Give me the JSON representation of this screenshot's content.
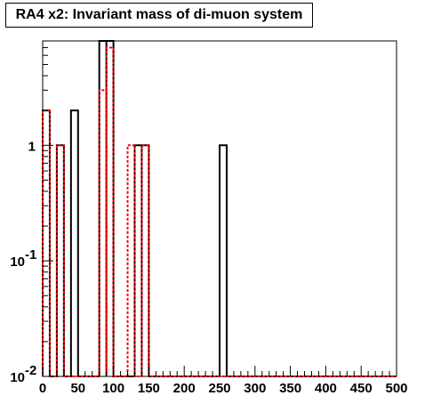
{
  "title": "RA4 x2: Invariant mass of di-muon system",
  "chart_data": {
    "type": "histogram",
    "title": "RA4 x2: Invariant mass of di-muon system",
    "xlabel": "",
    "ylabel": "",
    "xlim": [
      0,
      500
    ],
    "ylim": [
      0.01,
      8
    ],
    "y_scale": "log",
    "bin_width": 10,
    "x_ticks": [
      "0",
      "50",
      "100",
      "150",
      "200",
      "250",
      "300",
      "350",
      "400",
      "450",
      "500"
    ],
    "y_ticks": [
      {
        "value": 1,
        "base": "1",
        "exp": ""
      },
      {
        "value": 0.1,
        "base": "10",
        "exp": "-1"
      },
      {
        "value": 0.01,
        "base": "10",
        "exp": "-2"
      }
    ],
    "series": [
      {
        "style": "solid",
        "color": "#000000",
        "bins": [
          {
            "x0": 0,
            "x1": 10,
            "y": 2
          },
          {
            "x0": 20,
            "x1": 30,
            "y": 1
          },
          {
            "x0": 40,
            "x1": 50,
            "y": 2
          },
          {
            "x0": 80,
            "x1": 90,
            "y": 8
          },
          {
            "x0": 90,
            "x1": 100,
            "y": 8
          },
          {
            "x0": 130,
            "x1": 140,
            "y": 1
          },
          {
            "x0": 140,
            "x1": 150,
            "y": 1
          },
          {
            "x0": 250,
            "x1": 260,
            "y": 1
          }
        ]
      },
      {
        "style": "dashed",
        "color": "#ff0000",
        "bins": [
          {
            "x0": 0,
            "x1": 10,
            "y": 2
          },
          {
            "x0": 20,
            "x1": 30,
            "y": 1
          },
          {
            "x0": 80,
            "x1": 90,
            "y": 3
          },
          {
            "x0": 90,
            "x1": 100,
            "y": 7
          },
          {
            "x0": 120,
            "x1": 130,
            "y": 1
          },
          {
            "x0": 140,
            "x1": 150,
            "y": 1
          }
        ]
      }
    ]
  }
}
